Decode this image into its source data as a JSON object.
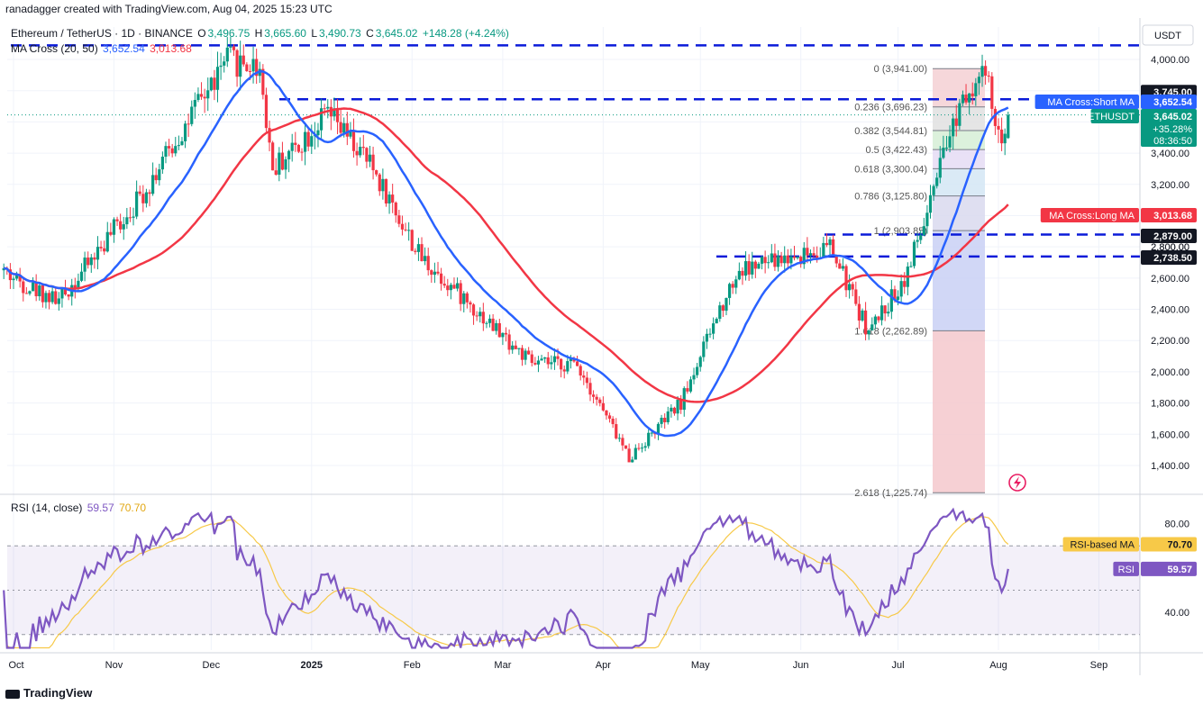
{
  "header": {
    "credit": "ranadagger created with TradingView.com, Aug 04, 2025 15:23 UTC",
    "symbol": "Ethereum / TetherUS · 1D · BINANCE",
    "ohlc": {
      "o_label": "O",
      "o": "3,496.75",
      "h_label": "H",
      "h": "3,665.60",
      "l_label": "L",
      "l": "3,490.73",
      "c_label": "C",
      "c": "3,645.02",
      "change": "+148.28 (+4.24%)"
    },
    "ma_legend": {
      "label": "MA Cross (20, 50)",
      "short": "3,652.54",
      "long": "3,013.68"
    },
    "rsi_legend": {
      "label": "RSI (14, close)",
      "value": "59.57",
      "ma": "70.70"
    }
  },
  "footer": {
    "brand": "TradingView"
  },
  "colors": {
    "up": "#089981",
    "down": "#f23645",
    "short_ma": "#2962ff",
    "long_ma": "#f23645",
    "rsi": "#7e57c2",
    "rsi_ma": "#f7c948",
    "dashed": "#0b1bd9"
  },
  "chart_data": {
    "type": "candlestick",
    "price_axis": {
      "currency": "USDT",
      "ticks": [
        "4,000.00",
        "3,800.00",
        "3,600.00",
        "3,400.00",
        "3,200.00",
        "3,000.00",
        "2,800.00",
        "2,600.00",
        "2,400.00",
        "2,200.00",
        "2,000.00",
        "1,800.00",
        "1,600.00",
        "1,400.00"
      ],
      "range": [
        1225,
        4130
      ]
    },
    "time_axis": {
      "ticks": [
        "Oct",
        "Nov",
        "Dec",
        "2025",
        "Feb",
        "Mar",
        "Apr",
        "May",
        "Jun",
        "Jul",
        "Aug",
        "Sep"
      ]
    },
    "price_labels": [
      {
        "text": "3,745.00",
        "price": 3745,
        "style": "dark"
      },
      {
        "text": "MA Cross:Short MA",
        "value": "3,652.54",
        "price": 3652.54,
        "style": "blue"
      },
      {
        "text": "ETHUSDT",
        "value": "3,645.02",
        "extra1": "+35.28%",
        "extra2": "08:36:50",
        "price": 3645.02,
        "style": "green"
      },
      {
        "text": "MA Cross:Long MA",
        "value": "3,013.68",
        "price": 3013.68,
        "style": "red"
      },
      {
        "text": "2,879.00",
        "price": 2879,
        "style": "dark"
      },
      {
        "text": "2,800.00",
        "price": 2800,
        "style": "plain"
      },
      {
        "text": "2,738.50",
        "price": 2738.5,
        "style": "dark"
      }
    ],
    "horizontal_lines": [
      4090,
      3745,
      2879,
      2738.5
    ],
    "fibonacci": {
      "levels": [
        {
          "label": "0 (3,941.00)",
          "price": 3941
        },
        {
          "label": "0.236 (3,696.23)",
          "price": 3696.23
        },
        {
          "label": "0.382 (3,544.81)",
          "price": 3544.81
        },
        {
          "label": "0.5 (3,422.43)",
          "price": 3422.43
        },
        {
          "label": "0.618 (3,300.04)",
          "price": 3300.04
        },
        {
          "label": "0.786 (3,125.80)",
          "price": 3125.8
        },
        {
          "label": "1 (2,903.85)",
          "price": 2903.85
        },
        {
          "label": "1.618 (2,262.89)",
          "price": 2262.89
        },
        {
          "label": "2.618 (1,225.74)",
          "price": 1225.74
        }
      ]
    },
    "ohlc_series_note": "daily candles from late Sep 2024 to Aug 04 2025",
    "key_points": [
      {
        "date": "2024-10-01",
        "price": 2600
      },
      {
        "date": "2024-10-15",
        "price": 2450
      },
      {
        "date": "2024-11-10",
        "price": 3150
      },
      {
        "date": "2024-12-06",
        "price": 4000
      },
      {
        "date": "2024-12-16",
        "price": 3950
      },
      {
        "date": "2024-12-20",
        "price": 3300
      },
      {
        "date": "2025-01-06",
        "price": 3650
      },
      {
        "date": "2025-01-20",
        "price": 3300
      },
      {
        "date": "2025-02-03",
        "price": 2750
      },
      {
        "date": "2025-03-10",
        "price": 2050
      },
      {
        "date": "2025-03-24",
        "price": 2050
      },
      {
        "date": "2025-04-09",
        "price": 1450
      },
      {
        "date": "2025-04-25",
        "price": 1800
      },
      {
        "date": "2025-05-09",
        "price": 2500
      },
      {
        "date": "2025-05-13",
        "price": 2650
      },
      {
        "date": "2025-06-10",
        "price": 2800
      },
      {
        "date": "2025-06-22",
        "price": 2250
      },
      {
        "date": "2025-07-03",
        "price": 2600
      },
      {
        "date": "2025-07-10",
        "price": 3000
      },
      {
        "date": "2025-07-21",
        "price": 3800
      },
      {
        "date": "2025-07-28",
        "price": 3900
      },
      {
        "date": "2025-08-02",
        "price": 3400
      },
      {
        "date": "2025-08-04",
        "price": 3645
      }
    ],
    "rsi": {
      "axis_ticks": [
        "80.00",
        "40.00"
      ],
      "upper": 70,
      "lower": 30,
      "range": [
        23,
        92
      ],
      "price_labels": [
        {
          "text": "RSI-based MA",
          "value": "70.70"
        },
        {
          "text": "RSI",
          "value": "59.57"
        }
      ]
    }
  }
}
